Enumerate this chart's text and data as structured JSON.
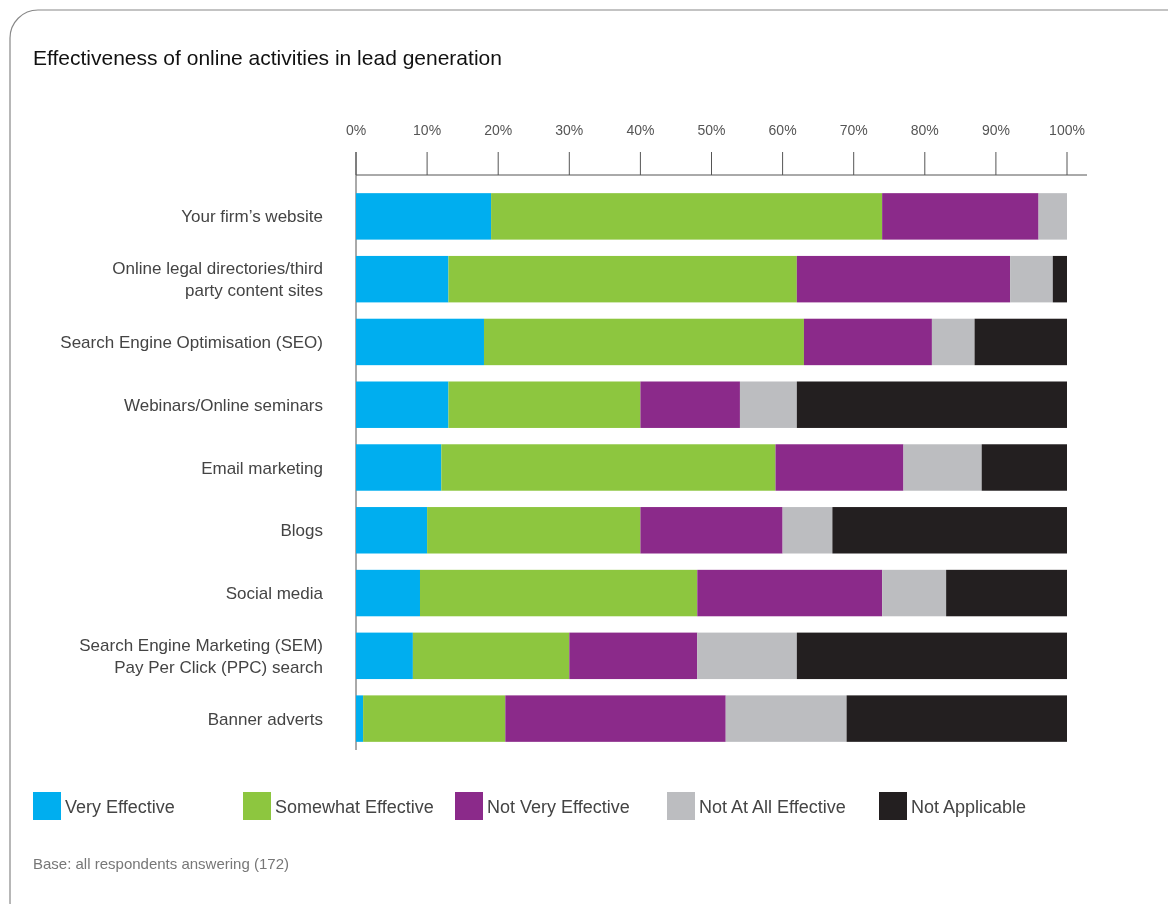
{
  "chart_data": {
    "type": "bar",
    "orientation": "horizontal",
    "stacked": true,
    "title": "Effectiveness of online activities in lead generation",
    "categories": [
      "Your firm’s website",
      "Online legal directories/third\nparty content sites",
      "Search Engine Optimisation (SEO)",
      "Webinars/Online seminars",
      "Email marketing",
      "Blogs",
      "Social media",
      "Search Engine Marketing (SEM)\nPay Per Click (PPC) search",
      "Banner adverts"
    ],
    "series": [
      {
        "name": "Very Effective",
        "color": "#00aeef",
        "values": [
          19,
          13,
          18,
          13,
          12,
          10,
          9,
          8,
          1
        ]
      },
      {
        "name": "Somewhat Effective",
        "color": "#8dc63f",
        "values": [
          55,
          49,
          45,
          27,
          47,
          30,
          39,
          22,
          20
        ]
      },
      {
        "name": "Not Very Effective",
        "color": "#8b2a8a",
        "values": [
          22,
          30,
          18,
          14,
          18,
          20,
          26,
          18,
          31
        ]
      },
      {
        "name": "Not At All  Effective",
        "color": "#bcbdc0",
        "values": [
          4,
          6,
          6,
          8,
          11,
          7,
          9,
          14,
          17
        ]
      },
      {
        "name": "Not Applicable",
        "color": "#231f20",
        "values": [
          0,
          2,
          13,
          38,
          12,
          33,
          17,
          38,
          31
        ]
      }
    ],
    "xlim": [
      0,
      100
    ],
    "xticks": [
      {
        "value": 0,
        "label": "0%"
      },
      {
        "value": 10,
        "label": "10%"
      },
      {
        "value": 20,
        "label": "20%"
      },
      {
        "value": 30,
        "label": "30%"
      },
      {
        "value": 40,
        "label": "40%"
      },
      {
        "value": 50,
        "label": "50%"
      },
      {
        "value": 60,
        "label": "60%"
      },
      {
        "value": 70,
        "label": "70%"
      },
      {
        "value": 80,
        "label": "80%"
      },
      {
        "value": 90,
        "label": "90%"
      },
      {
        "value": 100,
        "label": "100%"
      }
    ],
    "legend": "bottom",
    "annotations": [
      "Base: all respondents answering (172)"
    ]
  }
}
